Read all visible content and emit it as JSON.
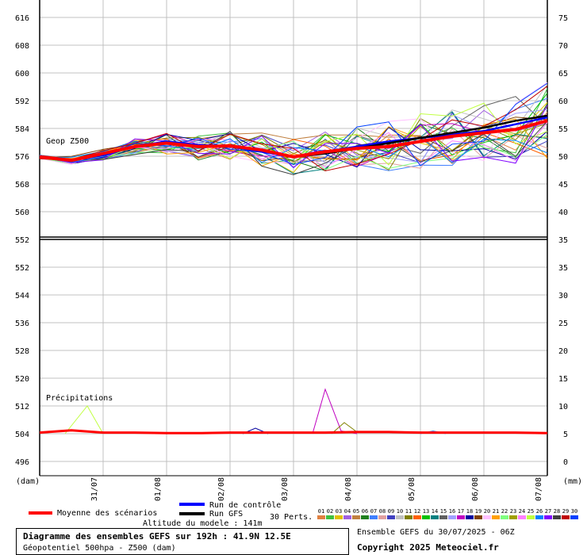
{
  "chart_data": [
    {
      "type": "line",
      "panel": "top",
      "label": "Geop Z500",
      "left_axis": {
        "ticks": [
          "616",
          "608",
          "600",
          "592",
          "584",
          "576",
          "568",
          "560",
          "552"
        ],
        "range": [
          552,
          616
        ]
      },
      "right_axis": {
        "ticks": [
          "75",
          "70",
          "65",
          "60",
          "55",
          "50",
          "45",
          "40",
          "35"
        ]
      },
      "x_ticks": [
        "31/07",
        "01/08",
        "02/08",
        "03/08",
        "04/08",
        "05/08",
        "06/08",
        "07/08"
      ],
      "x_range_days": [
        0,
        8
      ],
      "series": [
        {
          "name": "Moyenne des scénarios",
          "color": "#ff0000",
          "x": [
            0,
            0.5,
            1,
            1.5,
            2,
            2.5,
            3,
            3.5,
            4,
            4.5,
            5,
            5.5,
            6,
            6.5,
            7,
            7.5,
            8
          ],
          "values": [
            575.5,
            574.5,
            576.5,
            578.5,
            579.5,
            578.5,
            578.7,
            577.5,
            575.5,
            577,
            578,
            578.5,
            580,
            581.5,
            582.5,
            583.5,
            586
          ]
        },
        {
          "name": "Run de contrôle",
          "color": "#0000ff",
          "x": [
            0,
            0.5,
            1,
            1.5,
            2,
            2.5,
            3,
            3.5,
            4,
            4.5,
            5,
            5.5,
            6,
            6.5,
            7,
            7.5,
            8
          ],
          "values": [
            575.5,
            574.5,
            576,
            578.5,
            580,
            579,
            578.5,
            577,
            575.5,
            577,
            578.5,
            580,
            581,
            582,
            583,
            585,
            587
          ]
        },
        {
          "name": "Run GFS",
          "color": "#000000",
          "x": [
            0,
            0.5,
            1,
            1.5,
            2,
            2.5,
            3,
            3.5,
            4,
            4.5,
            5,
            5.5,
            6,
            6.5,
            7,
            7.5,
            8
          ],
          "values": [
            575.5,
            574.5,
            576.5,
            578.5,
            579.5,
            578.5,
            578.5,
            577.5,
            575.5,
            576.5,
            578,
            579.5,
            581,
            582.5,
            584,
            586,
            587.5
          ]
        }
      ]
    },
    {
      "type": "line",
      "panel": "bottom",
      "label": "Précipitations",
      "left_axis": {
        "ticks": [
          "552",
          "544",
          "536",
          "528",
          "520",
          "512",
          "504",
          "496"
        ]
      },
      "right_axis": {
        "ticks": [
          "35",
          "30",
          "25",
          "20",
          "15",
          "10",
          "5",
          "0"
        ]
      },
      "x_label_left": "(dam)",
      "x_label_right": "(mm)",
      "series": [
        {
          "name": "Moyenne des scénarios",
          "color": "#ff0000",
          "x": [
            0,
            0.5,
            1,
            1.5,
            2,
            2.5,
            3,
            3.5,
            4,
            4.5,
            5,
            5.5,
            6,
            6.5,
            7,
            7.5,
            8
          ],
          "values": [
            0.2,
            0.6,
            0.2,
            0.2,
            0.1,
            0.1,
            0.2,
            0.2,
            0.2,
            0.2,
            0.3,
            0.3,
            0.2,
            0.2,
            0.2,
            0.2,
            0.1
          ]
        }
      ]
    }
  ],
  "legend": {
    "mean": "Moyenne des scénarios",
    "control": "Run de contrôle",
    "gfs": "Run GFS",
    "perts": "30 Perts.",
    "pert_numbers": [
      "01",
      "02",
      "03",
      "04",
      "05",
      "06",
      "07",
      "08",
      "09",
      "10",
      "11",
      "12",
      "13",
      "14",
      "15",
      "16",
      "17",
      "18",
      "19",
      "20",
      "21",
      "22",
      "23",
      "24",
      "25",
      "26",
      "27",
      "28",
      "29",
      "30"
    ],
    "pert_colors": [
      "#e08040",
      "#40c040",
      "#e0c000",
      "#a060e0",
      "#c08040",
      "#208020",
      "#4080ff",
      "#e0a0a0",
      "#4040c0",
      "#c0c0c0",
      "#808000",
      "#ff6000",
      "#00c000",
      "#008080",
      "#606060",
      "#a0a0ff",
      "#c000c0",
      "#0000a0",
      "#804000",
      "#ffc0ff",
      "#ffa000",
      "#80ff80",
      "#a0a000",
      "#ff80ff",
      "#c0ff40",
      "#0080ff",
      "#8000ff",
      "#404040",
      "#c00000",
      "#0040ff"
    ]
  },
  "footer": {
    "altitude": "Altitude du modele : 141m",
    "title_line1": "Diagramme des ensembles GEFS sur 192h : 41.9N 12.5E",
    "title_line2": "Géopotentiel 500hpa - Z500 (dam)",
    "ensemble_info": "Ensemble GEFS du 30/07/2025 - 06Z",
    "copyright": "Copyright 2025 Meteociel.fr"
  }
}
